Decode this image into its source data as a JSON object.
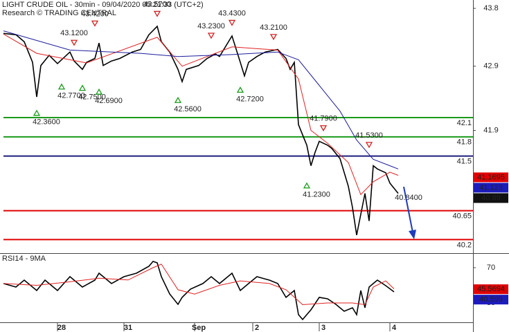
{
  "chart_data": [
    {
      "type": "line",
      "title": "LIGHT CRUDE OIL - 30min - 09/04/2020 05:21:33 (UTC+2)",
      "subtitle": "Research © TRADING CENTRAL",
      "xlim": [
        0,
        113
      ],
      "ylim": [
        40.0,
        43.93
      ],
      "yticks": [
        43.8,
        42.9,
        41.9
      ],
      "series": [
        {
          "color": "#000000",
          "x": [
            0,
            3,
            5,
            7,
            8,
            9,
            11,
            13,
            16,
            17,
            19,
            20,
            22,
            23,
            24,
            26,
            28,
            31,
            33,
            35,
            37,
            38,
            40,
            42,
            43,
            44,
            47,
            49,
            51,
            52,
            55,
            57,
            58,
            59,
            61,
            63,
            66,
            68,
            69,
            70,
            71,
            73,
            74,
            75,
            76,
            78,
            79,
            81,
            83,
            84,
            85,
            87,
            88,
            89,
            90,
            92,
            93,
            95
          ],
          "values": [
            43.41,
            43.39,
            43.28,
            42.96,
            42.42,
            42.91,
            43.07,
            42.94,
            43.12,
            42.98,
            42.85,
            42.96,
            43.02,
            43.26,
            42.91,
            42.98,
            43.02,
            43.12,
            43.16,
            43.39,
            43.52,
            43.28,
            43.12,
            42.85,
            42.66,
            42.85,
            42.91,
            43.02,
            43.09,
            43.05,
            43.37,
            42.96,
            42.75,
            42.96,
            43.05,
            43.12,
            43.16,
            43.02,
            42.85,
            42.96,
            41.99,
            41.67,
            41.35,
            41.56,
            41.73,
            41.67,
            41.62,
            41.46,
            41.03,
            40.7,
            40.27,
            40.92,
            40.49,
            41.35,
            41.3,
            41.24,
            41.08,
            40.92
          ]
        },
        {
          "color": "#e02020",
          "x": [
            0,
            8,
            20,
            37,
            43,
            55,
            66,
            71,
            74,
            78,
            83,
            86,
            89,
            93,
            95
          ],
          "values": [
            43.4,
            43.1,
            42.95,
            43.35,
            42.9,
            43.2,
            43.15,
            42.7,
            41.9,
            41.7,
            41.4,
            40.9,
            41.1,
            41.25,
            41.2
          ]
        },
        {
          "color": "#1c1c9c",
          "x": [
            0,
            16,
            33,
            42,
            55,
            66,
            71,
            76,
            81,
            85,
            89,
            93,
            95
          ],
          "values": [
            43.45,
            43.15,
            43.1,
            43.05,
            43.08,
            43.12,
            43.0,
            42.6,
            42.2,
            41.75,
            41.45,
            41.35,
            41.3
          ]
        }
      ],
      "levels": [
        {
          "value": 42.1,
          "color": "#1a9a1a"
        },
        {
          "value": 41.8,
          "color": "#1a9a1a"
        },
        {
          "value": 41.5,
          "color": "#1c1c7c"
        },
        {
          "value": 40.65,
          "color": "#e00000"
        },
        {
          "value": 40.2,
          "color": "#e00000"
        }
      ],
      "price_labels": [
        {
          "value": 41.1695,
          "color": "#e00000"
        },
        {
          "value": 41.123,
          "color": "#1c1cbc"
        },
        {
          "value": 40.89,
          "color": "#111111"
        }
      ],
      "annotations": [
        {
          "text": "42.3600",
          "x": 8,
          "y": 42.36,
          "marker": "up"
        },
        {
          "text": "42.7700",
          "x": 14,
          "y": 42.77,
          "marker": "up"
        },
        {
          "text": "42.7500",
          "x": 19,
          "y": 42.75,
          "marker": "up"
        },
        {
          "text": "42.6900",
          "x": 23,
          "y": 42.69,
          "marker": "up"
        },
        {
          "text": "43.1200",
          "x": 17,
          "y": 43.12,
          "marker": "down"
        },
        {
          "text": "43.4200",
          "x": 22,
          "y": 43.42,
          "marker": "down"
        },
        {
          "text": "43.5700",
          "x": 37,
          "y": 43.57,
          "marker": "down"
        },
        {
          "text": "42.5600",
          "x": 42,
          "y": 42.56,
          "marker": "up"
        },
        {
          "text": "43.2300",
          "x": 50,
          "y": 43.23,
          "marker": "down"
        },
        {
          "text": "43.4300",
          "x": 55,
          "y": 43.43,
          "marker": "down"
        },
        {
          "text": "42.7200",
          "x": 57,
          "y": 42.72,
          "marker": "up"
        },
        {
          "text": "43.2100",
          "x": 65,
          "y": 43.21,
          "marker": "down"
        },
        {
          "text": "41.7900",
          "x": 77,
          "y": 41.79,
          "marker": "down"
        },
        {
          "text": "41.5300",
          "x": 88,
          "y": 41.53,
          "marker": "down"
        },
        {
          "text": "41.2300",
          "x": 73,
          "y": 41.23,
          "marker": "up"
        },
        {
          "text": "40.8400",
          "x": 97,
          "y": 40.84
        }
      ]
    },
    {
      "type": "line",
      "title": "RSI14 - 9MA",
      "xlim": [
        0,
        113
      ],
      "ylim": [
        8.8,
        84.9
      ],
      "yticks": [
        70,
        30
      ],
      "xticks": [
        {
          "value": 13,
          "label": "28"
        },
        {
          "value": 29,
          "label": "31"
        },
        {
          "value": 46,
          "label": "Sep"
        },
        {
          "value": 60,
          "label": "2"
        },
        {
          "value": 76,
          "label": "3"
        },
        {
          "value": 93,
          "label": "4"
        }
      ],
      "series": [
        {
          "color": "#000000",
          "x": [
            0,
            3,
            5,
            8,
            10,
            13,
            16,
            19,
            22,
            23,
            26,
            29,
            32,
            35,
            36,
            37,
            38,
            40,
            42,
            43,
            45,
            48,
            50,
            52,
            55,
            57,
            59,
            61,
            64,
            66,
            68,
            70,
            71,
            72,
            74,
            76,
            78,
            80,
            82,
            84,
            85,
            86,
            87,
            88,
            89,
            90,
            92,
            94
          ],
          "values": [
            52.0,
            48.0,
            55.9,
            44.1,
            55.9,
            44.1,
            59.8,
            48.0,
            55.9,
            63.7,
            52.0,
            59.8,
            63.7,
            71.6,
            77.1,
            75.5,
            59.8,
            40.2,
            28.4,
            36.3,
            45.7,
            52.0,
            59.8,
            52.0,
            63.7,
            44.1,
            52.0,
            59.8,
            55.9,
            52.0,
            36.3,
            44.1,
            16.7,
            11.2,
            22.2,
            36.3,
            34.7,
            28.4,
            20.6,
            24.5,
            16.7,
            44.1,
            24.5,
            48.0,
            52.0,
            55.9,
            49.6,
            42.5
          ]
        },
        {
          "color": "#e02020",
          "x": [
            0,
            8,
            16,
            23,
            30,
            36,
            38,
            42,
            46,
            52,
            57,
            64,
            68,
            72,
            78,
            84,
            87,
            89,
            92,
            94
          ],
          "values": [
            52,
            50,
            54,
            58,
            56,
            70,
            74,
            45,
            40,
            50,
            55,
            52,
            45,
            28,
            30,
            30,
            28,
            48,
            55,
            46
          ]
        }
      ],
      "price_labels": [
        {
          "value": 45.5694,
          "color": "#e00000"
        },
        {
          "value": 40.599,
          "color": "#1c1cbc"
        }
      ]
    }
  ]
}
